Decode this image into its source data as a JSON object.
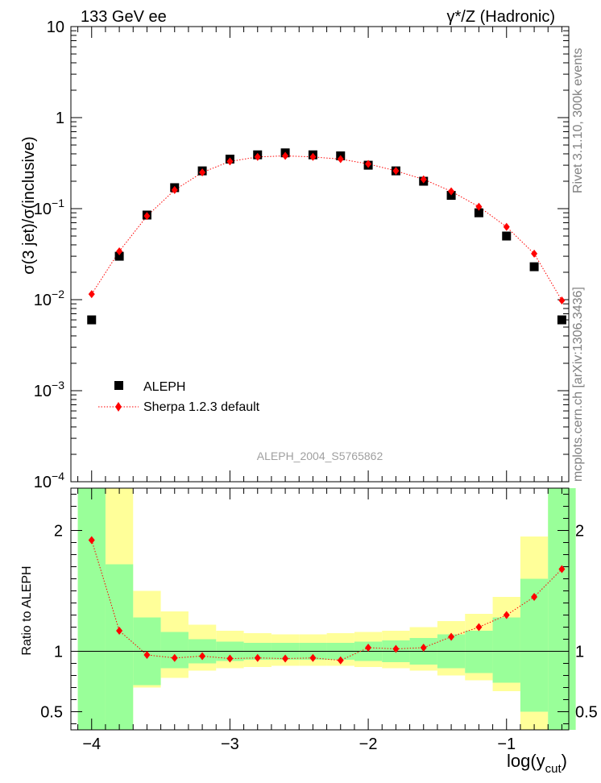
{
  "header": {
    "left": "133 GeV ee",
    "right": "γ*/Z (Hadronic)"
  },
  "side_text": {
    "top": "Rivet 3.1.10,  300k events",
    "bottom": "mcplots.cern.ch [arXiv:1306.3436]"
  },
  "analysis_label": "ALEPH_2004_S5765862",
  "chart_data": [
    {
      "type": "scatter",
      "yscale": "log",
      "ylabel": "σ(3 jet)/σ(inclusive)",
      "ylim": [
        0.0001,
        10
      ],
      "xlim": [
        -4.15,
        -0.55
      ],
      "x_ticks": [
        -4,
        -3,
        -2,
        -1
      ],
      "y_ticks": [
        "10^-4",
        "10^-3",
        "10^-2",
        "10^-1",
        "1",
        "10"
      ],
      "legend_position": "lower-left",
      "x": [
        -4.0,
        -3.8,
        -3.6,
        -3.4,
        -3.2,
        -3.0,
        -2.8,
        -2.6,
        -2.4,
        -2.2,
        -2.0,
        -1.8,
        -1.6,
        -1.4,
        -1.2,
        -1.0,
        -0.8,
        -0.6
      ],
      "series": [
        {
          "name": "ALEPH",
          "marker": "square",
          "color": "#000000",
          "values": [
            0.006,
            0.03,
            0.085,
            0.17,
            0.26,
            0.35,
            0.39,
            0.41,
            0.39,
            0.38,
            0.3,
            0.26,
            0.2,
            0.14,
            0.09,
            0.05,
            0.023,
            0.006
          ]
        },
        {
          "name": "Sherpa 1.2.3 default",
          "marker": "diamond",
          "line": "dotted",
          "color": "#ff0000",
          "values": [
            0.0115,
            0.034,
            0.083,
            0.16,
            0.25,
            0.33,
            0.37,
            0.38,
            0.37,
            0.35,
            0.31,
            0.26,
            0.21,
            0.155,
            0.105,
            0.063,
            0.032,
            0.0098
          ]
        }
      ]
    },
    {
      "type": "scatter",
      "ylabel": "Ratio to ALEPH",
      "xlabel": "log(y",
      "xlabel_sub": "cut",
      "xlabel_close": ")",
      "ylim": [
        0.35,
        2.35
      ],
      "xlim": [
        -4.15,
        -0.55
      ],
      "x_ticks": [
        -4,
        -3,
        -2,
        -1
      ],
      "y_ticks": [
        0.5,
        1,
        2
      ],
      "bin_edges": [
        -4.1,
        -3.9,
        -3.7,
        -3.5,
        -3.3,
        -3.1,
        -2.9,
        -2.7,
        -2.5,
        -2.3,
        -2.1,
        -1.9,
        -1.7,
        -1.5,
        -1.3,
        -1.1,
        -0.9,
        -0.7,
        -0.5
      ],
      "band_yellow": {
        "color": "#ffff99",
        "lo": [
          0.35,
          0.35,
          0.7,
          0.78,
          0.84,
          0.86,
          0.87,
          0.88,
          0.88,
          0.88,
          0.87,
          0.86,
          0.84,
          0.8,
          0.76,
          0.67,
          0.35,
          0.35
        ],
        "hi": [
          2.35,
          2.35,
          1.5,
          1.33,
          1.22,
          1.17,
          1.15,
          1.14,
          1.14,
          1.15,
          1.16,
          1.17,
          1.2,
          1.25,
          1.31,
          1.45,
          1.95,
          2.35
        ]
      },
      "band_green": {
        "color": "#99ff99",
        "lo": [
          0.35,
          0.35,
          0.72,
          0.86,
          0.9,
          0.92,
          0.93,
          0.93,
          0.93,
          0.93,
          0.92,
          0.91,
          0.89,
          0.86,
          0.82,
          0.74,
          0.5,
          0.35
        ],
        "hi": [
          2.35,
          1.72,
          1.28,
          1.16,
          1.1,
          1.08,
          1.07,
          1.07,
          1.07,
          1.07,
          1.08,
          1.09,
          1.11,
          1.14,
          1.17,
          1.28,
          1.6,
          2.35
        ]
      },
      "ratio": {
        "name": "Sherpa 1.2.3 default",
        "color": "#ff0000",
        "x": [
          -4.0,
          -3.8,
          -3.6,
          -3.4,
          -3.2,
          -3.0,
          -2.8,
          -2.6,
          -2.4,
          -2.2,
          -2.0,
          -1.8,
          -1.6,
          -1.4,
          -1.2,
          -1.0,
          -0.8,
          -0.6
        ],
        "values": [
          1.92,
          1.17,
          0.97,
          0.945,
          0.96,
          0.94,
          0.945,
          0.94,
          0.945,
          0.925,
          1.03,
          1.02,
          1.03,
          1.12,
          1.2,
          1.3,
          1.45,
          1.68
        ]
      }
    }
  ]
}
